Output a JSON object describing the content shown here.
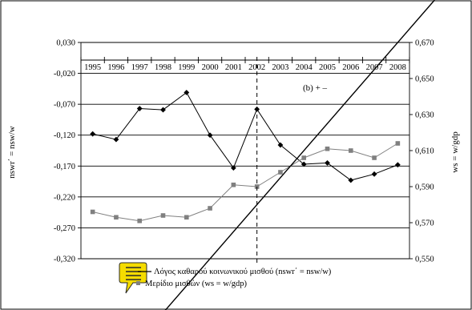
{
  "chart_data": {
    "type": "line",
    "x": [
      "1995",
      "1996",
      "1997",
      "1998",
      "1999",
      "2000",
      "2001",
      "2002",
      "2003",
      "2004",
      "2005",
      "2006",
      "2007",
      "2008"
    ],
    "series": [
      {
        "name": "Λόγος καθαρού κοινωνικού μισθού (nswr΄ = nsw/w)",
        "axis": "left",
        "marker": "diamond",
        "color": "#000000",
        "values": [
          -0.118,
          -0.127,
          -0.077,
          -0.079,
          -0.051,
          -0.12,
          -0.173,
          -0.078,
          -0.136,
          -0.167,
          -0.165,
          -0.193,
          -0.183,
          -0.168
        ]
      },
      {
        "name": "Μερίδιο μισθών (ws = w/gdp)",
        "axis": "right",
        "marker": "square",
        "color": "#808080",
        "values": [
          0.576,
          0.573,
          0.571,
          0.574,
          0.573,
          0.578,
          0.591,
          0.59,
          0.598,
          0.606,
          0.611,
          0.61,
          0.606,
          0.614
        ]
      }
    ],
    "left_axis": {
      "label": "nswr΄ = nsw/w",
      "range": [
        -0.32,
        0.03
      ],
      "ticks": [
        "0,030",
        "-0,020",
        "-0,070",
        "-0,120",
        "-0,170",
        "-0,220",
        "-0,270",
        "-0,320"
      ]
    },
    "right_axis": {
      "label": "ws = w/gdp",
      "range": [
        0.55,
        0.67
      ],
      "ticks": [
        "0,670",
        "0,650",
        "0,630",
        "0,610",
        "0,590",
        "0,570",
        "0,550"
      ]
    },
    "annotation": "(b) +  –",
    "vertical_marker_year": "2002",
    "trend_line": {
      "from": {
        "x": "2000",
        "y_right": 0.55
      },
      "to": {
        "x": "2008",
        "y_right": 0.67
      }
    },
    "legend": {
      "position": "bottom-center"
    },
    "grid": "horizontal"
  },
  "colors": {
    "series1": "#000000",
    "series2": "#808080",
    "callout": "#f5dc00"
  },
  "icons": {
    "callout": "comment-icon"
  }
}
